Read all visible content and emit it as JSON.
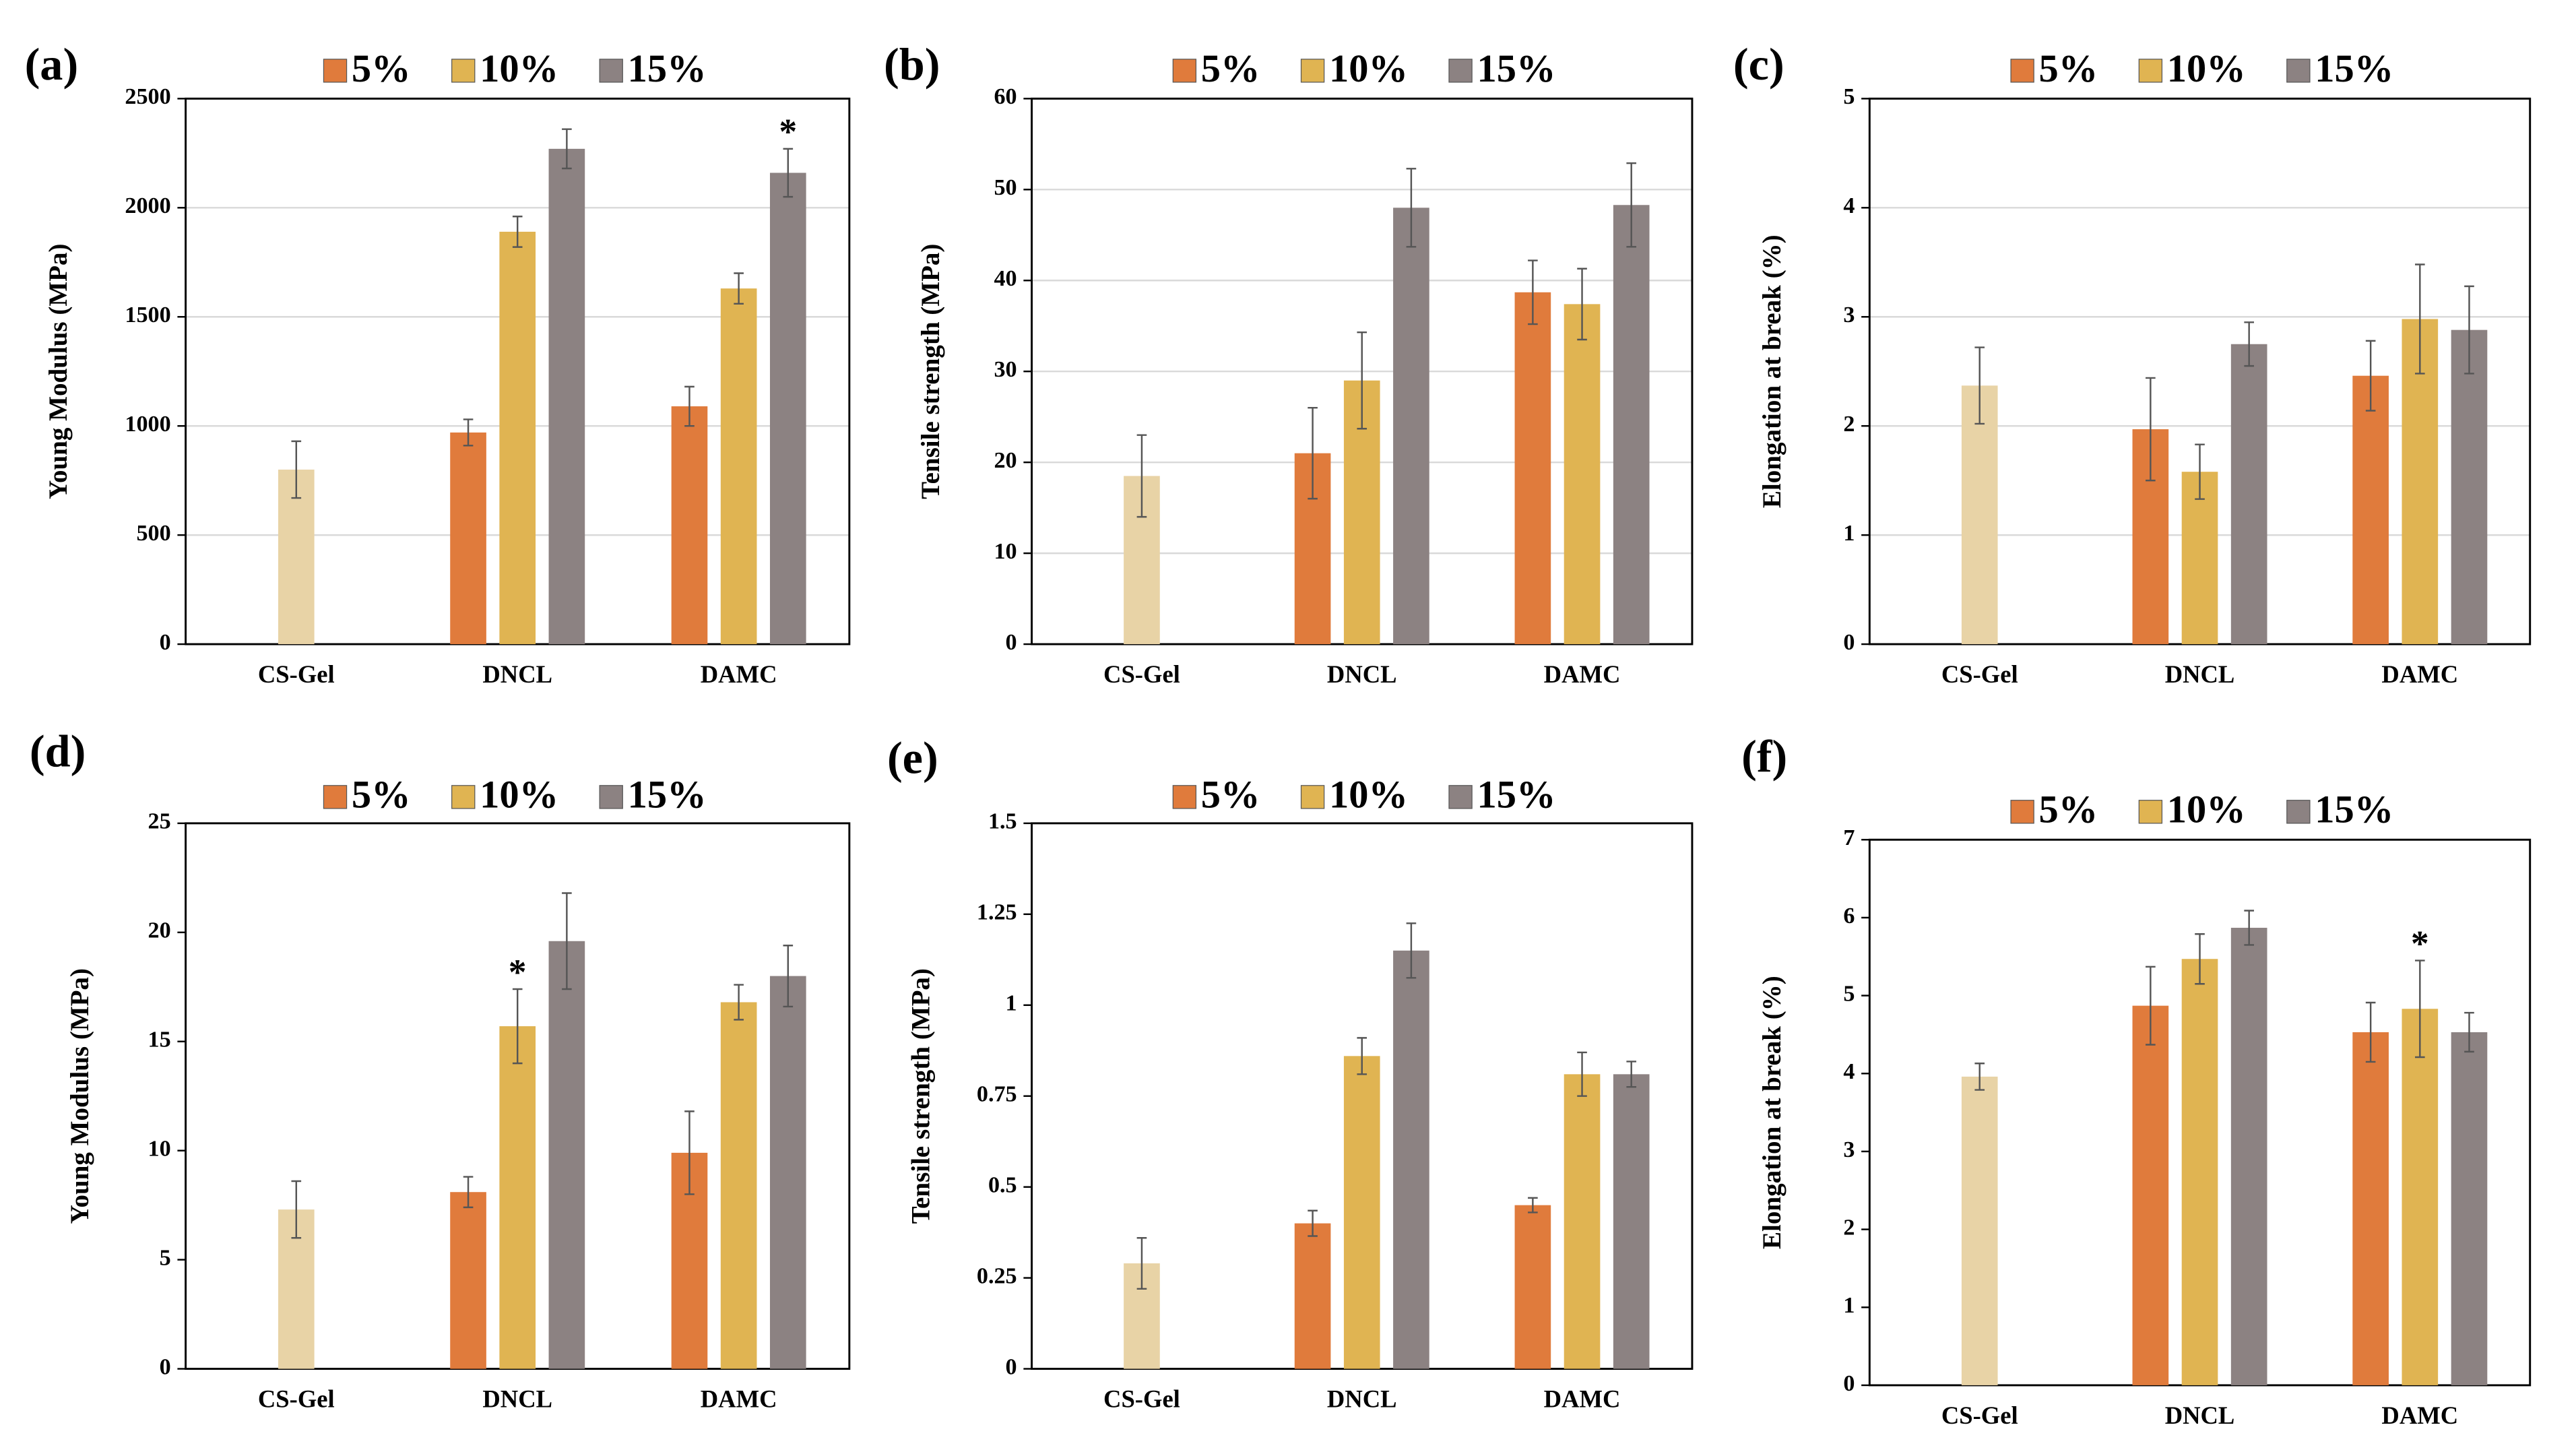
{
  "chart_data": [
    {
      "type": "bar",
      "label": "(a)",
      "ylabel": "Young Modulus (MPa)",
      "categories": [
        "CS-Gel",
        "DNCL",
        "DAMC"
      ],
      "ylim": [
        0,
        2500
      ],
      "yticks": [
        0,
        500,
        1000,
        1500,
        2000,
        2500
      ],
      "grid": true,
      "series": [
        {
          "name": "5%",
          "color": "#e07b3c",
          "values": [
            null,
            970,
            1090
          ],
          "errors": [
            null,
            60,
            90
          ]
        },
        {
          "name": "10%",
          "color": "#e0b452",
          "colors": [
            "#e8d3a6",
            "#e0b452",
            "#e0b452"
          ],
          "values": [
            800,
            1890,
            1630
          ],
          "errors": [
            130,
            70,
            70
          ]
        },
        {
          "name": "15%",
          "color": "#8c8282",
          "values": [
            null,
            2270,
            2160
          ],
          "errors": [
            null,
            90,
            110
          ]
        }
      ],
      "annotations": [
        {
          "text": "*",
          "category": "DAMC",
          "series": "15%"
        }
      ]
    },
    {
      "type": "bar",
      "label": "(b)",
      "ylabel": "Tensile strength (MPa)",
      "categories": [
        "CS-Gel",
        "DNCL",
        "DAMC"
      ],
      "ylim": [
        0,
        60
      ],
      "yticks": [
        0,
        10,
        20,
        30,
        40,
        50,
        60
      ],
      "grid": true,
      "series": [
        {
          "name": "5%",
          "color": "#e07b3c",
          "values": [
            null,
            21,
            38.7
          ],
          "errors": [
            null,
            5,
            3.5
          ]
        },
        {
          "name": "10%",
          "color": "#e0b452",
          "colors": [
            "#e8d3a6",
            "#e0b452",
            "#e0b452"
          ],
          "values": [
            18.5,
            29,
            37.4
          ],
          "errors": [
            4.5,
            5.3,
            3.9
          ]
        },
        {
          "name": "15%",
          "color": "#8c8282",
          "values": [
            null,
            48,
            48.3
          ],
          "errors": [
            null,
            4.3,
            4.6
          ]
        }
      ]
    },
    {
      "type": "bar",
      "label": "(c)",
      "ylabel": "Elongation at break (%)",
      "categories": [
        "CS-Gel",
        "DNCL",
        "DAMC"
      ],
      "ylim": [
        0,
        5
      ],
      "yticks": [
        0,
        1,
        2,
        3,
        4,
        5
      ],
      "grid": true,
      "series": [
        {
          "name": "5%",
          "color": "#e07b3c",
          "values": [
            null,
            1.97,
            2.46
          ],
          "errors": [
            null,
            0.47,
            0.32
          ]
        },
        {
          "name": "10%",
          "color": "#e0b452",
          "colors": [
            "#e8d3a6",
            "#e0b452",
            "#e0b452"
          ],
          "values": [
            2.37,
            1.58,
            2.98
          ],
          "errors": [
            0.35,
            0.25,
            0.5
          ]
        },
        {
          "name": "15%",
          "color": "#8c8282",
          "values": [
            null,
            2.75,
            2.88
          ],
          "errors": [
            null,
            0.2,
            0.4
          ]
        }
      ]
    },
    {
      "type": "bar",
      "label": "(d)",
      "ylabel": "Young Modulus (MPa)",
      "categories": [
        "CS-Gel",
        "DNCL",
        "DAMC"
      ],
      "ylim": [
        0,
        25
      ],
      "yticks": [
        0,
        5,
        10,
        15,
        20,
        25
      ],
      "grid": false,
      "series": [
        {
          "name": "5%",
          "color": "#e07b3c",
          "values": [
            null,
            8.1,
            9.9
          ],
          "errors": [
            null,
            0.7,
            1.9
          ]
        },
        {
          "name": "10%",
          "color": "#e0b452",
          "colors": [
            "#e8d3a6",
            "#e0b452",
            "#e0b452"
          ],
          "values": [
            7.3,
            15.7,
            16.8
          ],
          "errors": [
            1.3,
            1.7,
            0.8
          ]
        },
        {
          "name": "15%",
          "color": "#8c8282",
          "values": [
            null,
            19.6,
            18
          ],
          "errors": [
            null,
            2.2,
            1.4
          ]
        }
      ],
      "annotations": [
        {
          "text": "*",
          "category": "DNCL",
          "series": "10%"
        }
      ]
    },
    {
      "type": "bar",
      "label": "(e)",
      "ylabel": "Tensile strength (MPa)",
      "categories": [
        "CS-Gel",
        "DNCL",
        "DAMC"
      ],
      "ylim": [
        0,
        1.5
      ],
      "yticks": [
        0,
        0.25,
        0.5,
        0.75,
        1,
        1.25,
        1.5
      ],
      "grid": false,
      "series": [
        {
          "name": "5%",
          "color": "#e07b3c",
          "values": [
            null,
            0.4,
            0.45
          ],
          "errors": [
            null,
            0.035,
            0.02
          ]
        },
        {
          "name": "10%",
          "color": "#e0b452",
          "colors": [
            "#e8d3a6",
            "#e0b452",
            "#e0b452"
          ],
          "values": [
            0.29,
            0.86,
            0.81
          ],
          "errors": [
            0.07,
            0.05,
            0.06
          ]
        },
        {
          "name": "15%",
          "color": "#8c8282",
          "values": [
            null,
            1.15,
            0.81
          ],
          "errors": [
            null,
            0.075,
            0.035
          ]
        }
      ]
    },
    {
      "type": "bar",
      "label": "(f)",
      "ylabel": "Elongation at break (%)",
      "categories": [
        "CS-Gel",
        "DNCL",
        "DAMC"
      ],
      "ylim": [
        0,
        7
      ],
      "yticks": [
        0,
        1,
        2,
        3,
        4,
        5,
        6,
        7
      ],
      "grid": false,
      "series": [
        {
          "name": "5%",
          "color": "#e07b3c",
          "values": [
            null,
            4.87,
            4.53
          ],
          "errors": [
            null,
            0.5,
            0.38
          ]
        },
        {
          "name": "10%",
          "color": "#e0b452",
          "colors": [
            "#e8d3a6",
            "#e0b452",
            "#e0b452"
          ],
          "values": [
            3.96,
            5.47,
            4.83
          ],
          "errors": [
            0.17,
            0.32,
            0.62
          ]
        },
        {
          "name": "15%",
          "color": "#8c8282",
          "values": [
            null,
            5.87,
            4.53
          ],
          "errors": [
            null,
            0.22,
            0.25
          ]
        }
      ],
      "annotations": [
        {
          "text": "*",
          "category": "DAMC",
          "series": "10%"
        }
      ]
    }
  ]
}
